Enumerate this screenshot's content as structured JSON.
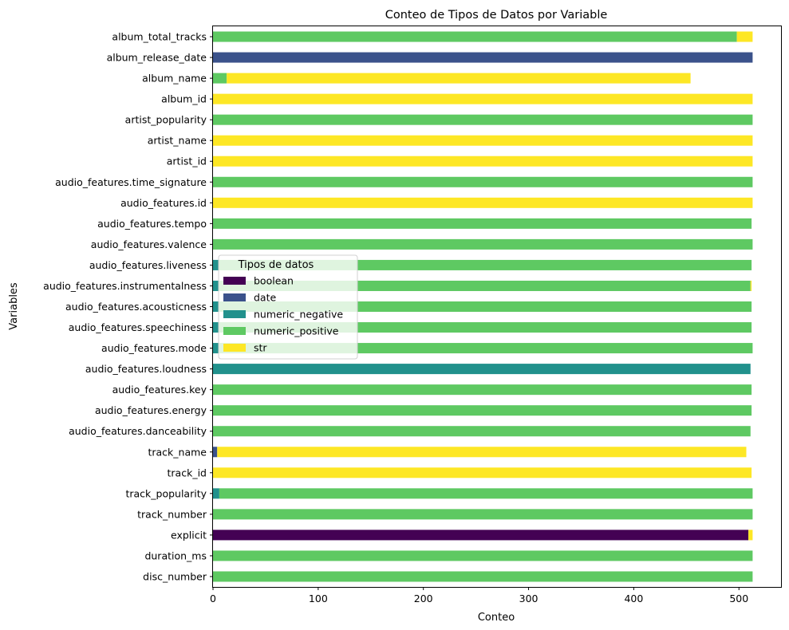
{
  "chart_data": {
    "type": "bar",
    "orientation": "horizontal",
    "stacked": true,
    "title": "Conteo de Tipos de Datos por Variable",
    "xlabel": "Conteo",
    "ylabel": "Variables",
    "xlim": [
      0,
      540
    ],
    "xticks": [
      0,
      100,
      200,
      300,
      400,
      500
    ],
    "grid": false,
    "legend": {
      "title": "Tipos de datos",
      "placement": "center-left"
    },
    "categories": [
      "disc_number",
      "duration_ms",
      "explicit",
      "track_number",
      "track_popularity",
      "track_id",
      "track_name",
      "audio_features.danceability",
      "audio_features.energy",
      "audio_features.key",
      "audio_features.loudness",
      "audio_features.mode",
      "audio_features.speechiness",
      "audio_features.acousticness",
      "audio_features.instrumentalness",
      "audio_features.liveness",
      "audio_features.valence",
      "audio_features.tempo",
      "audio_features.id",
      "audio_features.time_signature",
      "artist_id",
      "artist_name",
      "artist_popularity",
      "album_id",
      "album_name",
      "album_release_date",
      "album_total_tracks"
    ],
    "series": [
      {
        "name": "boolean",
        "color": "#440154",
        "values": [
          0,
          0,
          509,
          0,
          0,
          0,
          0,
          0,
          0,
          0,
          0,
          0,
          0,
          0,
          0,
          0,
          0,
          0,
          0,
          0,
          0,
          0,
          0,
          0,
          0,
          0,
          0
        ]
      },
      {
        "name": "date",
        "color": "#3b528b",
        "values": [
          0,
          0,
          0,
          0,
          0,
          0,
          4,
          0,
          0,
          0,
          0,
          0,
          0,
          0,
          0,
          0,
          0,
          0,
          0,
          0,
          0,
          0,
          0,
          0,
          0,
          513,
          0
        ]
      },
      {
        "name": "numeric_negative",
        "color": "#21918c",
        "values": [
          0,
          0,
          0,
          0,
          6,
          0,
          0,
          0,
          0,
          0,
          511,
          5,
          5,
          5,
          5,
          5,
          0,
          0,
          0,
          0,
          0,
          0,
          0,
          0,
          0,
          0,
          0
        ]
      },
      {
        "name": "numeric_positive",
        "color": "#5ec962",
        "values": [
          513,
          513,
          0,
          513,
          507,
          0,
          0,
          511,
          512,
          512,
          0,
          508,
          507,
          507,
          506,
          507,
          513,
          512,
          0,
          513,
          0,
          0,
          513,
          0,
          13,
          0,
          498
        ]
      },
      {
        "name": "str",
        "color": "#fde725",
        "values": [
          0,
          0,
          4,
          0,
          0,
          512,
          503,
          0,
          0,
          0,
          0,
          0,
          0,
          0,
          1,
          0,
          0,
          0,
          513,
          0,
          513,
          513,
          0,
          513,
          441,
          0,
          15
        ]
      }
    ]
  }
}
